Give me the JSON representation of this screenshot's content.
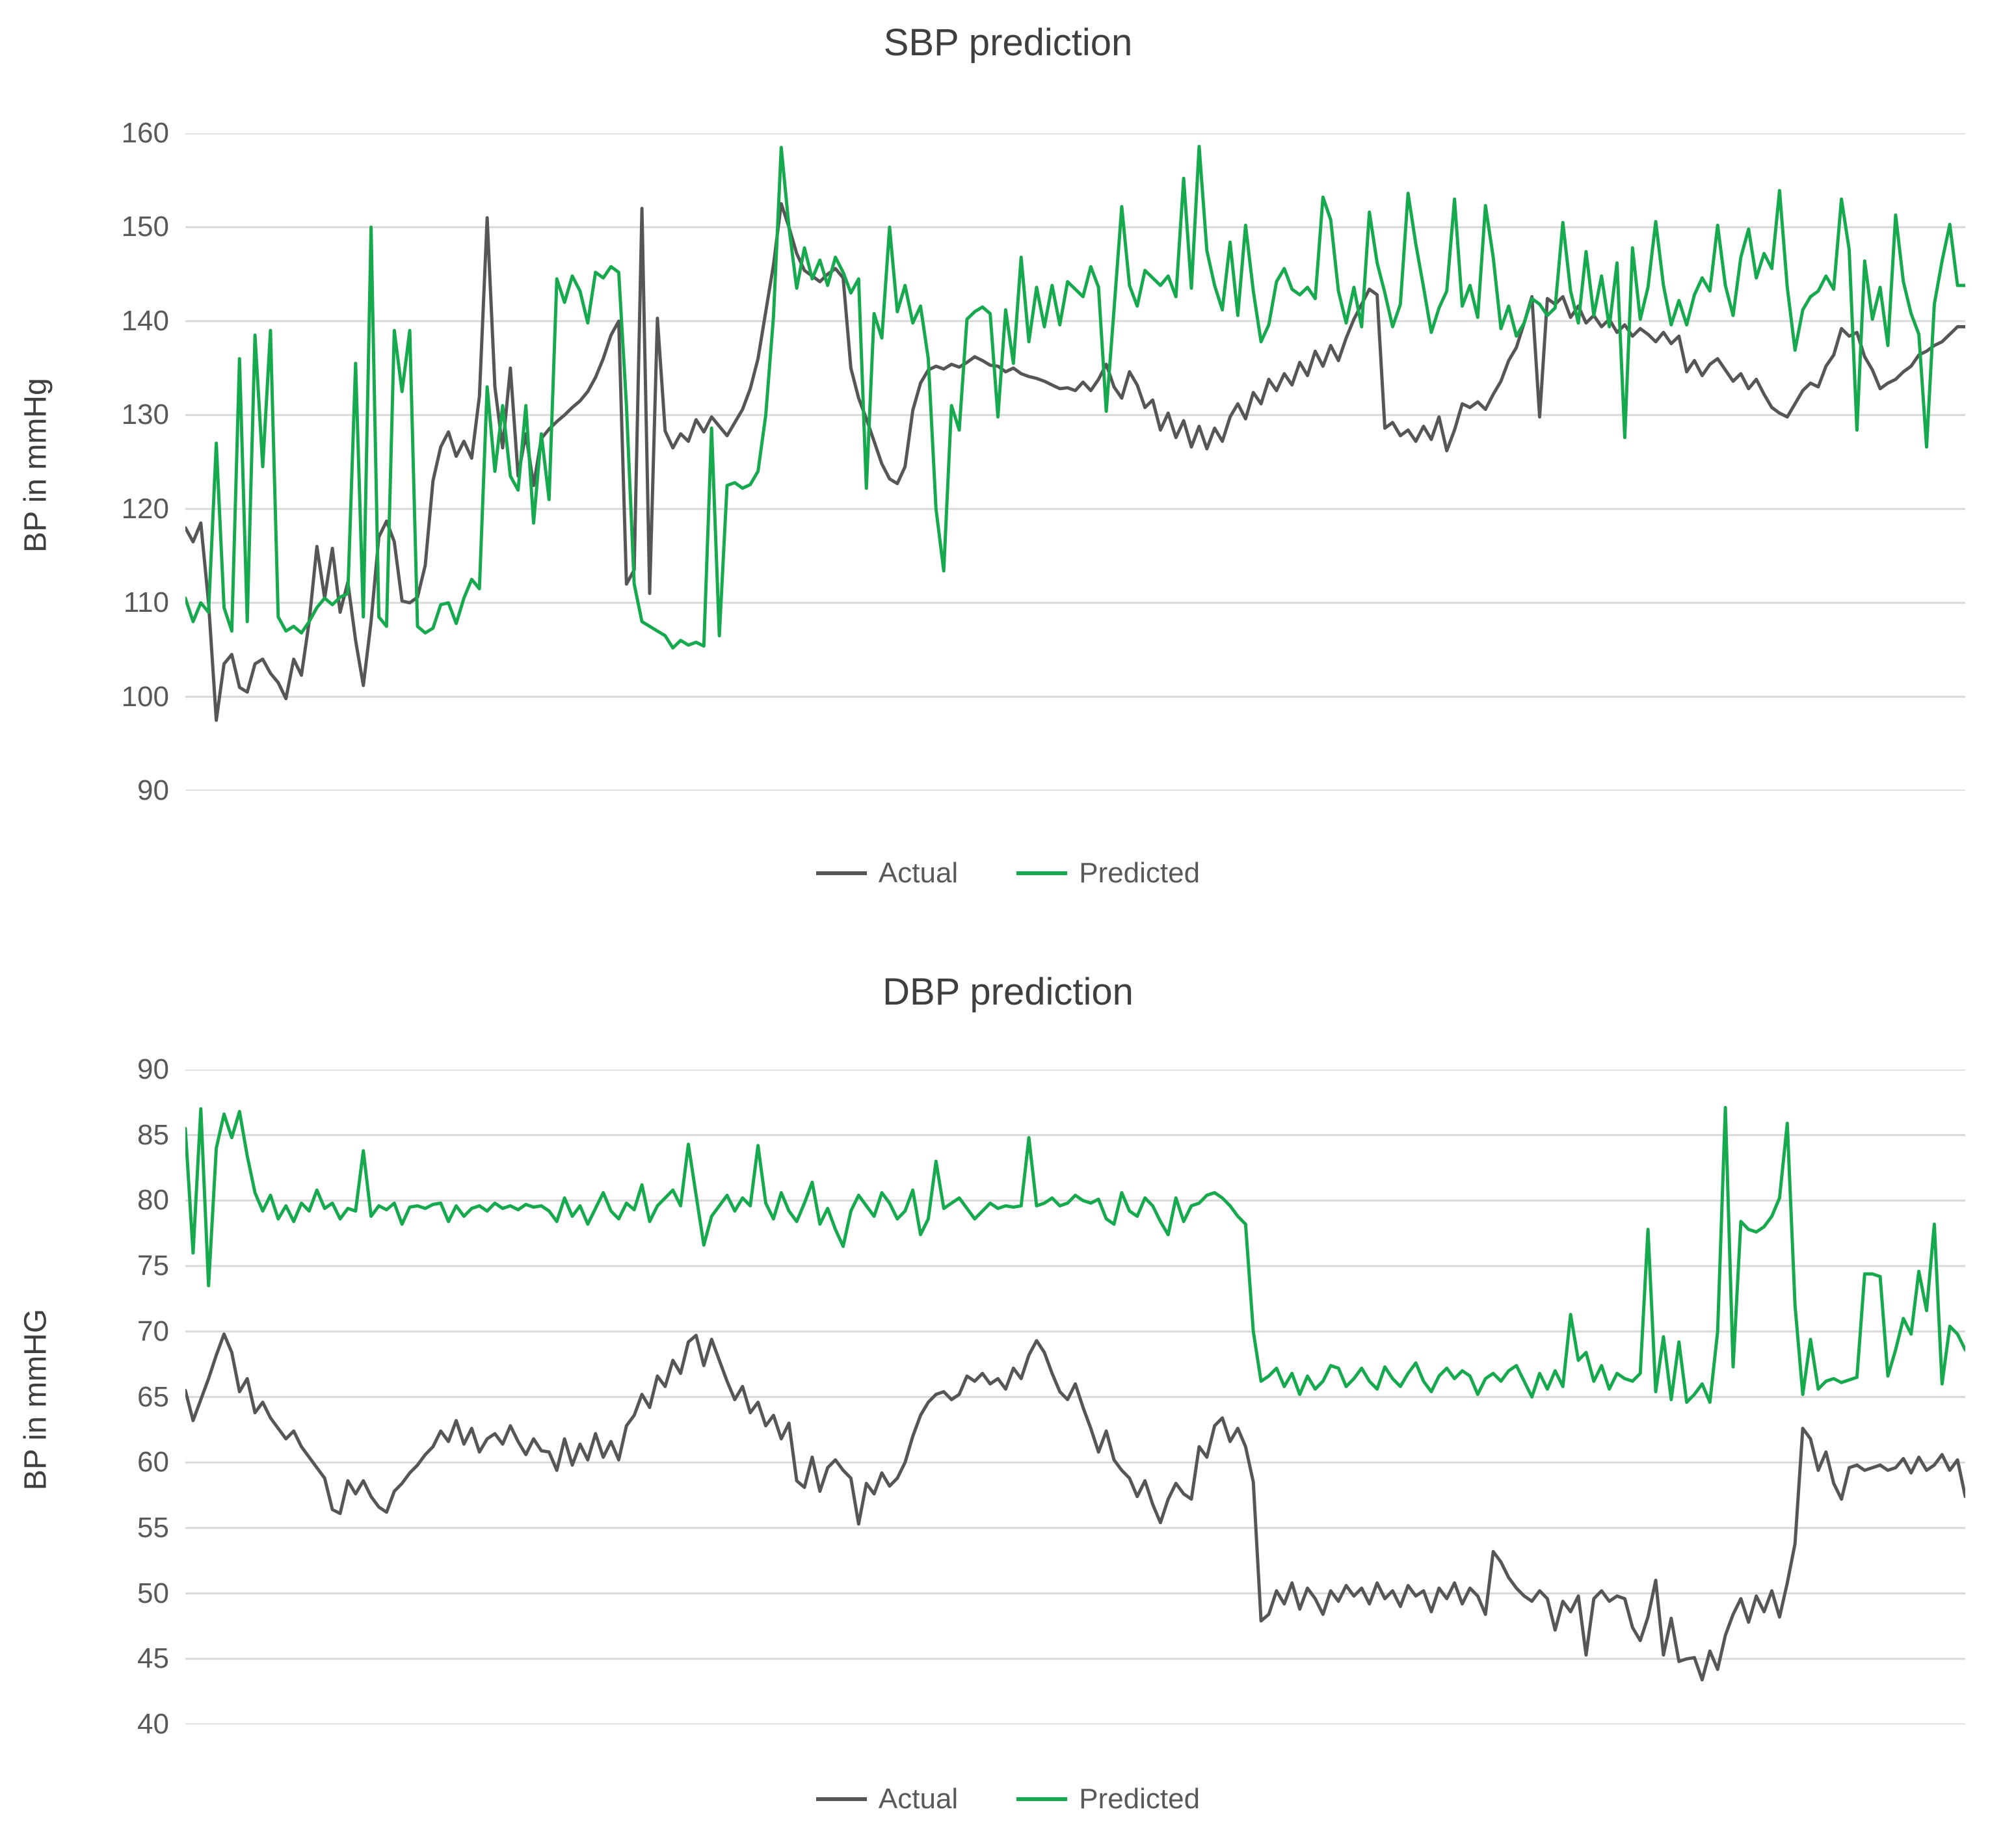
{
  "page": {
    "background": "#ffffff"
  },
  "colors": {
    "actual": "#565656",
    "predicted": "#16a94e",
    "gridline": "#d9d9d9",
    "tick_label": "#595959",
    "title_text": "#3f3f3f",
    "legend_text": "#595959"
  },
  "legend": {
    "actual_label": "Actual",
    "predicted_label": "Predicted"
  },
  "chart_data": [
    {
      "type": "line",
      "title": "SBP prediction",
      "ylabel": "BP in mmHg",
      "xlabel": "",
      "ylim": [
        90,
        160
      ],
      "yticks": [
        160,
        150,
        140,
        130,
        120,
        110,
        100,
        90
      ],
      "grid": true,
      "legend_position": "bottom",
      "legend_entries": [
        "Actual",
        "Predicted"
      ],
      "series": [
        {
          "name": "Actual",
          "color_key": "actual",
          "values": [
            118,
            116.5,
            118.5,
            110,
            97.5,
            103.5,
            104.5,
            101,
            100.5,
            103.5,
            104,
            102.5,
            101.5,
            99.8,
            104,
            102.3,
            108,
            116,
            110.5,
            115.8,
            109,
            112.2,
            106,
            101.2,
            108,
            117,
            118.7,
            116.5,
            110.2,
            110,
            110.6,
            114,
            123,
            126.6,
            128.2,
            125.6,
            127.2,
            125.4,
            132,
            151,
            133,
            126.5,
            135,
            123.5,
            128,
            122.5,
            127.5,
            128.5,
            129.3,
            130,
            130.8,
            131.5,
            132.5,
            134,
            136,
            138.5,
            140,
            112,
            113.5,
            152,
            111,
            140.3,
            128.3,
            126.5,
            128,
            127.2,
            129.5,
            128.2,
            129.8,
            128.8,
            127.8,
            129.2,
            130.6,
            132.8,
            136,
            141,
            146,
            152.5,
            150,
            147.2,
            145.4,
            144.8,
            144.2,
            145,
            145.6,
            144.6,
            135,
            131.8,
            129.6,
            127.2,
            124.8,
            123.2,
            122.7,
            124.5,
            130.5,
            133.4,
            134.8,
            135.2,
            134.9,
            135.4,
            135.1,
            135.6,
            136.2,
            135.8,
            135.3,
            135.2,
            134.6,
            135,
            134.4,
            134.1,
            133.9,
            133.6,
            133.2,
            132.8,
            132.9,
            132.6,
            133.5,
            132.6,
            133.8,
            135.4,
            133,
            131.8,
            134.6,
            133.2,
            130.8,
            131.6,
            128.4,
            130.2,
            127.6,
            129.4,
            126.6,
            128.8,
            126.4,
            128.6,
            127.2,
            129.8,
            131.2,
            129.6,
            132.4,
            131.2,
            133.8,
            132.6,
            134.4,
            133.2,
            135.6,
            134.2,
            136.8,
            135.2,
            137.4,
            135.8,
            138.2,
            140.2,
            141.8,
            143.4,
            142.8,
            128.6,
            129.2,
            127.8,
            128.4,
            127.2,
            128.8,
            127.4,
            129.8,
            126.2,
            128.4,
            131.2,
            130.8,
            131.4,
            130.6,
            132.2,
            133.6,
            135.8,
            137.2,
            139.8,
            142.6,
            129.8,
            142.4,
            141.8,
            142.6,
            140.4,
            141.6,
            139.8,
            140.6,
            139.4,
            140.2,
            138.8,
            139.6,
            138.4,
            139.2,
            138.6,
            137.8,
            138.8,
            137.6,
            138.4,
            134.6,
            135.8,
            134.2,
            135.4,
            136,
            134.8,
            133.6,
            134.4,
            132.8,
            133.8,
            132.2,
            130.8,
            130.2,
            129.8,
            131.2,
            132.6,
            133.4,
            133,
            135.2,
            136.4,
            139.2,
            138.4,
            138.8,
            136.2,
            134.8,
            132.8,
            133.4,
            133.8,
            134.6,
            135.2,
            136.4,
            136.8,
            137.4,
            137.8,
            138.6,
            139.4,
            139.4
          ]
        },
        {
          "name": "Predicted",
          "color_key": "predicted",
          "values": [
            110.5,
            108,
            110,
            109,
            127,
            109.5,
            107,
            136,
            108,
            138.5,
            124.5,
            139,
            108.5,
            107,
            107.5,
            106.8,
            108,
            109.5,
            110.5,
            109.8,
            110.6,
            111,
            135.5,
            108.5,
            150,
            108.5,
            107.5,
            139,
            132.5,
            139,
            107.5,
            106.8,
            107.3,
            109.8,
            110,
            107.8,
            110.5,
            112.5,
            111.5,
            133,
            124,
            131,
            123.5,
            122,
            131,
            118.5,
            128,
            121,
            144.5,
            142,
            144.8,
            143.2,
            139.8,
            145.2,
            144.6,
            145.8,
            145.2,
            131,
            112,
            108,
            107.5,
            107,
            106.5,
            105.2,
            106,
            105.5,
            105.8,
            105.4,
            128.6,
            106.5,
            122.5,
            122.8,
            122.2,
            122.6,
            124,
            130,
            140.5,
            158.5,
            150,
            143.5,
            147.8,
            144.5,
            146.5,
            143.8,
            146.8,
            145.2,
            143,
            144.5,
            122.2,
            140.8,
            138.2,
            150,
            141,
            143.8,
            139.8,
            141.6,
            136,
            120,
            113.4,
            131,
            128.4,
            140.2,
            141,
            141.5,
            140.8,
            129.8,
            141.2,
            135.5,
            146.8,
            137.8,
            143.6,
            139.4,
            143.8,
            139.6,
            144.2,
            143.4,
            142.6,
            145.8,
            143.6,
            130.4,
            141.2,
            152.2,
            143.8,
            141.6,
            145.4,
            144.6,
            143.8,
            144.8,
            142.6,
            155.2,
            143.5,
            158.6,
            147.5,
            143.8,
            141.2,
            148.4,
            140.6,
            150.2,
            143.2,
            137.8,
            139.6,
            144.2,
            145.6,
            143.4,
            142.8,
            143.6,
            142.4,
            153.2,
            150.8,
            143.2,
            139.8,
            143.6,
            139.4,
            151.6,
            146.2,
            143,
            139.4,
            141.8,
            153.6,
            148.2,
            143.6,
            138.8,
            141.4,
            143.2,
            153,
            141.6,
            143.8,
            140.4,
            152.3,
            146.8,
            139.2,
            141.6,
            138.4,
            139.8,
            142.4,
            141.8,
            140.6,
            141.4,
            150.5,
            143.2,
            139.8,
            147.4,
            140.6,
            144.8,
            139.4,
            146.2,
            127.6,
            147.8,
            140.2,
            143.6,
            150.6,
            143.8,
            139.6,
            142.2,
            139.6,
            142.8,
            144.6,
            143.2,
            150.2,
            143.8,
            140.6,
            146.8,
            149.8,
            144.6,
            147.2,
            145.6,
            153.9,
            143.6,
            136.9,
            141.2,
            142.6,
            143.2,
            144.8,
            143.4,
            153,
            147.6,
            128.4,
            146.4,
            140.2,
            143.6,
            137.4,
            151.3,
            144.2,
            140.8,
            138.6,
            126.6,
            141.8,
            146.4,
            150.3,
            143.8,
            143.8
          ]
        }
      ]
    },
    {
      "type": "line",
      "title": "DBP prediction",
      "ylabel": "BP in mmHG",
      "xlabel": "",
      "ylim": [
        40,
        90
      ],
      "yticks": [
        90,
        85,
        80,
        75,
        70,
        65,
        60,
        55,
        50,
        45,
        40
      ],
      "grid": true,
      "legend_position": "bottom",
      "legend_entries": [
        "Actual",
        "Predicted"
      ],
      "series": [
        {
          "name": "Actual",
          "color_key": "actual",
          "values": [
            65.5,
            63.2,
            64.8,
            66.4,
            68.2,
            69.8,
            68.4,
            65.4,
            66.4,
            63.8,
            64.6,
            63.4,
            62.6,
            61.8,
            62.4,
            61.2,
            60.4,
            59.6,
            58.8,
            56.4,
            56.1,
            58.6,
            57.6,
            58.6,
            57.4,
            56.6,
            56.2,
            57.8,
            58.4,
            59.2,
            59.8,
            60.6,
            61.2,
            62.4,
            61.6,
            63.2,
            61.4,
            62.6,
            60.8,
            61.8,
            62.2,
            61.4,
            62.8,
            61.6,
            60.6,
            61.8,
            60.9,
            60.8,
            59.4,
            61.8,
            59.8,
            61.4,
            60.2,
            62.2,
            60.4,
            61.6,
            60.2,
            62.8,
            63.6,
            65.2,
            64.2,
            66.6,
            65.8,
            67.8,
            66.8,
            69.2,
            69.7,
            67.4,
            69.4,
            67.8,
            66.2,
            64.8,
            65.8,
            63.8,
            64.6,
            62.8,
            63.6,
            61.8,
            63,
            58.6,
            58.1,
            60.4,
            57.8,
            59.6,
            60.2,
            59.4,
            58.8,
            55.3,
            58.4,
            57.6,
            59.2,
            58.2,
            58.8,
            60,
            62,
            63.6,
            64.6,
            65.2,
            65.4,
            64.8,
            65.2,
            66.6,
            66.2,
            66.8,
            66,
            66.4,
            65.6,
            67.2,
            66.4,
            68.2,
            69.3,
            68.4,
            66.8,
            65.4,
            64.8,
            66,
            64.2,
            62.6,
            60.8,
            62.4,
            60.2,
            59.4,
            58.8,
            57.4,
            58.6,
            56.8,
            55.4,
            57.2,
            58.4,
            57.6,
            57.2,
            61.2,
            60.4,
            62.8,
            63.4,
            61.6,
            62.6,
            61.2,
            58.5,
            47.9,
            48.4,
            50.2,
            49.2,
            50.8,
            48.8,
            50.4,
            49.6,
            48.4,
            50.2,
            49.4,
            50.6,
            49.8,
            50.4,
            49.2,
            50.8,
            49.6,
            50.2,
            49,
            50.6,
            49.8,
            50.2,
            48.6,
            50.4,
            49.6,
            50.8,
            49.2,
            50.4,
            49.8,
            48.4,
            53.2,
            52.4,
            51.2,
            50.4,
            49.8,
            49.4,
            50.2,
            49.6,
            47.2,
            49.4,
            48.6,
            49.8,
            45.3,
            49.6,
            50.2,
            49.4,
            49.8,
            49.6,
            47.4,
            46.4,
            48.2,
            51,
            45.3,
            48.1,
            44.8,
            45,
            45.1,
            43.4,
            45.6,
            44.2,
            46.8,
            48.4,
            49.6,
            47.8,
            49.8,
            48.6,
            50.2,
            48.2,
            50.8,
            53.8,
            62.6,
            61.8,
            59.4,
            60.8,
            58.4,
            57.2,
            59.6,
            59.8,
            59.4,
            59.6,
            59.8,
            59.4,
            59.6,
            60.3,
            59.2,
            60.4,
            59.4,
            59.8,
            60.6,
            59.4,
            60.2,
            57.4
          ]
        },
        {
          "name": "Predicted",
          "color_key": "predicted",
          "values": [
            85.5,
            76,
            87,
            73.5,
            84,
            86.6,
            84.8,
            86.8,
            83.4,
            80.6,
            79.2,
            80.4,
            78.6,
            79.6,
            78.4,
            79.8,
            79.2,
            80.8,
            79.4,
            79.8,
            78.6,
            79.4,
            79.2,
            83.8,
            78.8,
            79.6,
            79.3,
            79.8,
            78.2,
            79.5,
            79.6,
            79.4,
            79.7,
            79.8,
            78.4,
            79.6,
            78.8,
            79.4,
            79.6,
            79.2,
            79.8,
            79.4,
            79.6,
            79.3,
            79.7,
            79.5,
            79.6,
            79.2,
            78.4,
            80.2,
            78.8,
            79.6,
            78.2,
            79.4,
            80.6,
            79.2,
            78.6,
            79.8,
            79.3,
            81.2,
            78.4,
            79.6,
            80.2,
            80.8,
            79.6,
            84.3,
            80.4,
            76.6,
            78.8,
            79.6,
            80.4,
            79.2,
            80.2,
            79.6,
            84.2,
            79.8,
            78.6,
            80.6,
            79.2,
            78.4,
            79.8,
            81.4,
            78.2,
            79.4,
            77.8,
            76.5,
            79.2,
            80.4,
            79.6,
            78.8,
            80.6,
            79.8,
            78.6,
            79.2,
            80.8,
            77.4,
            78.6,
            83,
            79.4,
            79.8,
            80.2,
            79.4,
            78.6,
            79.2,
            79.8,
            79.4,
            79.6,
            79.5,
            79.6,
            84.8,
            79.6,
            79.8,
            80.2,
            79.6,
            79.8,
            80.4,
            80,
            79.8,
            80.1,
            78.6,
            78.2,
            80.6,
            79.2,
            78.8,
            80.2,
            79.6,
            78.4,
            77.4,
            80.2,
            78.4,
            79.6,
            79.8,
            80.4,
            80.6,
            80.2,
            79.6,
            78.8,
            78.2,
            70,
            66.2,
            66.6,
            67.2,
            65.8,
            66.8,
            65.2,
            66.6,
            65.6,
            66.2,
            67.4,
            67.2,
            65.8,
            66.4,
            67.2,
            66.2,
            65.6,
            67.3,
            66.4,
            65.8,
            66.8,
            67.6,
            66.2,
            65.4,
            66.6,
            67.2,
            66.4,
            67,
            66.6,
            65.2,
            66.4,
            66.8,
            66.2,
            67,
            67.4,
            66.2,
            65,
            66.8,
            65.6,
            67,
            65.8,
            71.3,
            67.8,
            68.4,
            66.2,
            67.4,
            65.6,
            66.8,
            66.4,
            66.2,
            66.8,
            77.8,
            65.4,
            69.6,
            64.8,
            69.2,
            64.6,
            65.2,
            66,
            64.6,
            70,
            87.1,
            67.3,
            78.4,
            77.8,
            77.6,
            78,
            78.8,
            80.2,
            85.9,
            72,
            65.2,
            69.4,
            65.6,
            66.2,
            66.4,
            66.1,
            66.3,
            66.5,
            74.4,
            74.4,
            74.2,
            66.6,
            68.6,
            71,
            69.8,
            74.6,
            71.6,
            78.2,
            66,
            70.4,
            69.8,
            68.6
          ]
        }
      ]
    }
  ],
  "layout_note": "two stacked line charts, no x-axis tick labels, legend centered below each chart"
}
